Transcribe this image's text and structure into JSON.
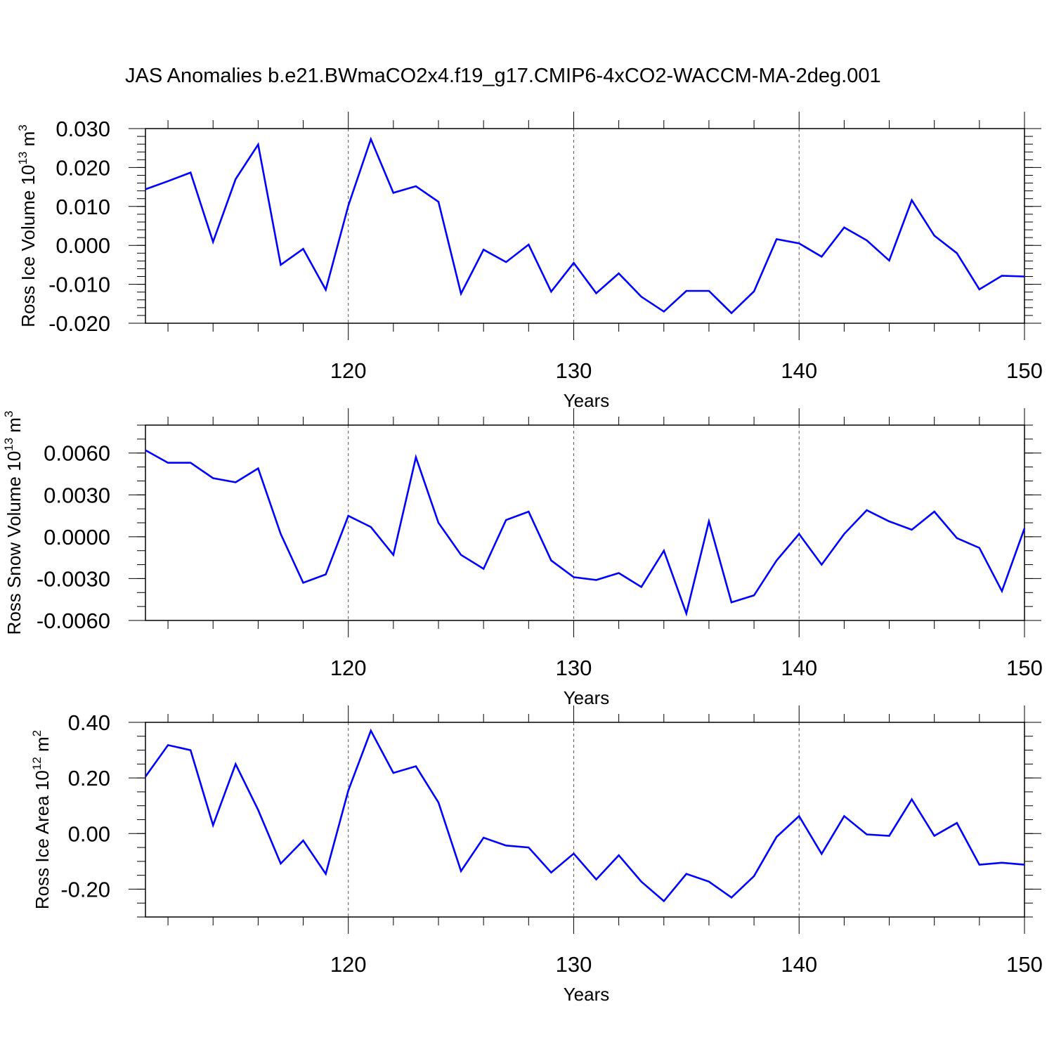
{
  "title": "JAS Anomalies b.e21.BWmaCO2x4.f19_g17.CMIP6-4xCO2-WACCM-MA-2deg.001",
  "chart_data": [
    {
      "type": "line",
      "ylabel": "Ross Ice Volume 10",
      "ylabel_sup": "13",
      "ylabel_unit": " m",
      "ylabel_unit_sup": "3",
      "xlabel": "Years",
      "xlim": [
        111,
        150
      ],
      "ylim": [
        -0.02,
        0.03
      ],
      "y_ticks": [
        -0.02,
        -0.01,
        0.0,
        0.01,
        0.02,
        0.03
      ],
      "y_tick_labels": [
        "-0.020",
        "-0.010",
        "0.000",
        "0.010",
        "0.020",
        "0.030"
      ],
      "y_minor_step": 0.002,
      "x_ticks": [
        120,
        130,
        140,
        150
      ],
      "x_tick_labels": [
        "120",
        "130",
        "140",
        "150"
      ],
      "grid": "dashed vertical lines at major x ticks",
      "line_color": "#0000ff",
      "x": [
        111,
        112,
        113,
        114,
        115,
        116,
        117,
        118,
        119,
        120,
        121,
        122,
        123,
        124,
        125,
        126,
        127,
        128,
        129,
        130,
        131,
        132,
        133,
        134,
        135,
        136,
        137,
        138,
        139,
        140,
        141,
        142,
        143,
        144,
        145,
        146,
        147,
        148,
        149,
        150
      ],
      "values": [
        0.0144,
        0.0165,
        0.0187,
        0.0009,
        0.017,
        0.0259,
        -0.005,
        -0.0009,
        -0.0114,
        0.0102,
        0.0273,
        0.0135,
        0.0152,
        0.0112,
        -0.0124,
        -0.0011,
        -0.0043,
        0.0002,
        -0.0119,
        -0.0045,
        -0.0123,
        -0.0072,
        -0.0132,
        -0.017,
        -0.0117,
        -0.0117,
        -0.0174,
        -0.0118,
        0.0016,
        0.0005,
        -0.0029,
        0.0046,
        0.0013,
        -0.0039,
        0.0116,
        0.0025,
        -0.002,
        -0.0113,
        -0.0078,
        -0.008
      ]
    },
    {
      "type": "line",
      "ylabel": "Ross Snow Volume 10",
      "ylabel_sup": "13",
      "ylabel_unit": " m",
      "ylabel_unit_sup": "3",
      "xlabel": "Years",
      "xlim": [
        111,
        150
      ],
      "ylim": [
        -0.006,
        0.008
      ],
      "y_ticks": [
        -0.006,
        -0.003,
        0.0,
        0.003,
        0.006
      ],
      "y_tick_labels": [
        "-0.0060",
        "-0.0030",
        "0.0000",
        "0.0030",
        "0.0060"
      ],
      "y_minor_step": 0.001,
      "x_ticks": [
        120,
        130,
        140,
        150
      ],
      "x_tick_labels": [
        "120",
        "130",
        "140",
        "150"
      ],
      "grid": "dashed vertical lines at major x ticks",
      "line_color": "#0000ff",
      "x": [
        111,
        112,
        113,
        114,
        115,
        116,
        117,
        118,
        119,
        120,
        121,
        122,
        123,
        124,
        125,
        126,
        127,
        128,
        129,
        130,
        131,
        132,
        133,
        134,
        135,
        136,
        137,
        138,
        139,
        140,
        141,
        142,
        143,
        144,
        145,
        146,
        147,
        148,
        149,
        150
      ],
      "values": [
        0.0062,
        0.0053,
        0.0053,
        0.0042,
        0.0039,
        0.0049,
        0.0002,
        -0.0033,
        -0.0027,
        0.0015,
        0.0007,
        -0.0013,
        0.0057,
        0.001,
        -0.0013,
        -0.0023,
        0.0012,
        0.0018,
        -0.0017,
        -0.0029,
        -0.0031,
        -0.0026,
        -0.0036,
        -0.001,
        -0.0055,
        0.0011,
        -0.0047,
        -0.0042,
        -0.0017,
        0.0002,
        -0.002,
        0.0002,
        0.0019,
        0.0011,
        0.0005,
        0.0018,
        -0.0001,
        -0.0008,
        -0.0039,
        0.0006
      ]
    },
    {
      "type": "line",
      "ylabel": "Ross Ice Area 10",
      "ylabel_sup": "12",
      "ylabel_unit": " m",
      "ylabel_unit_sup": "2",
      "xlabel": "Years",
      "xlim": [
        111,
        150
      ],
      "ylim": [
        -0.3,
        0.4
      ],
      "y_ticks": [
        -0.2,
        0.0,
        0.2,
        0.4
      ],
      "y_tick_labels": [
        "-0.20",
        "0.00",
        "0.20",
        "0.40"
      ],
      "y_minor_step": 0.05,
      "x_ticks": [
        120,
        130,
        140,
        150
      ],
      "x_tick_labels": [
        "120",
        "130",
        "140",
        "150"
      ],
      "grid": "dashed vertical lines at major x ticks",
      "line_color": "#0000ff",
      "x": [
        111,
        112,
        113,
        114,
        115,
        116,
        117,
        118,
        119,
        120,
        121,
        122,
        123,
        124,
        125,
        126,
        127,
        128,
        129,
        130,
        131,
        132,
        133,
        134,
        135,
        136,
        137,
        138,
        139,
        140,
        141,
        142,
        143,
        144,
        145,
        146,
        147,
        148,
        149,
        150
      ],
      "values": [
        0.205,
        0.318,
        0.3,
        0.03,
        0.25,
        0.085,
        -0.108,
        -0.025,
        -0.145,
        0.155,
        0.37,
        0.218,
        0.242,
        0.112,
        -0.135,
        -0.015,
        -0.043,
        -0.05,
        -0.14,
        -0.072,
        -0.165,
        -0.078,
        -0.173,
        -0.243,
        -0.145,
        -0.173,
        -0.23,
        -0.153,
        -0.012,
        0.063,
        -0.073,
        0.063,
        -0.003,
        -0.008,
        0.123,
        -0.008,
        0.038,
        -0.112,
        -0.105,
        -0.112
      ]
    }
  ]
}
